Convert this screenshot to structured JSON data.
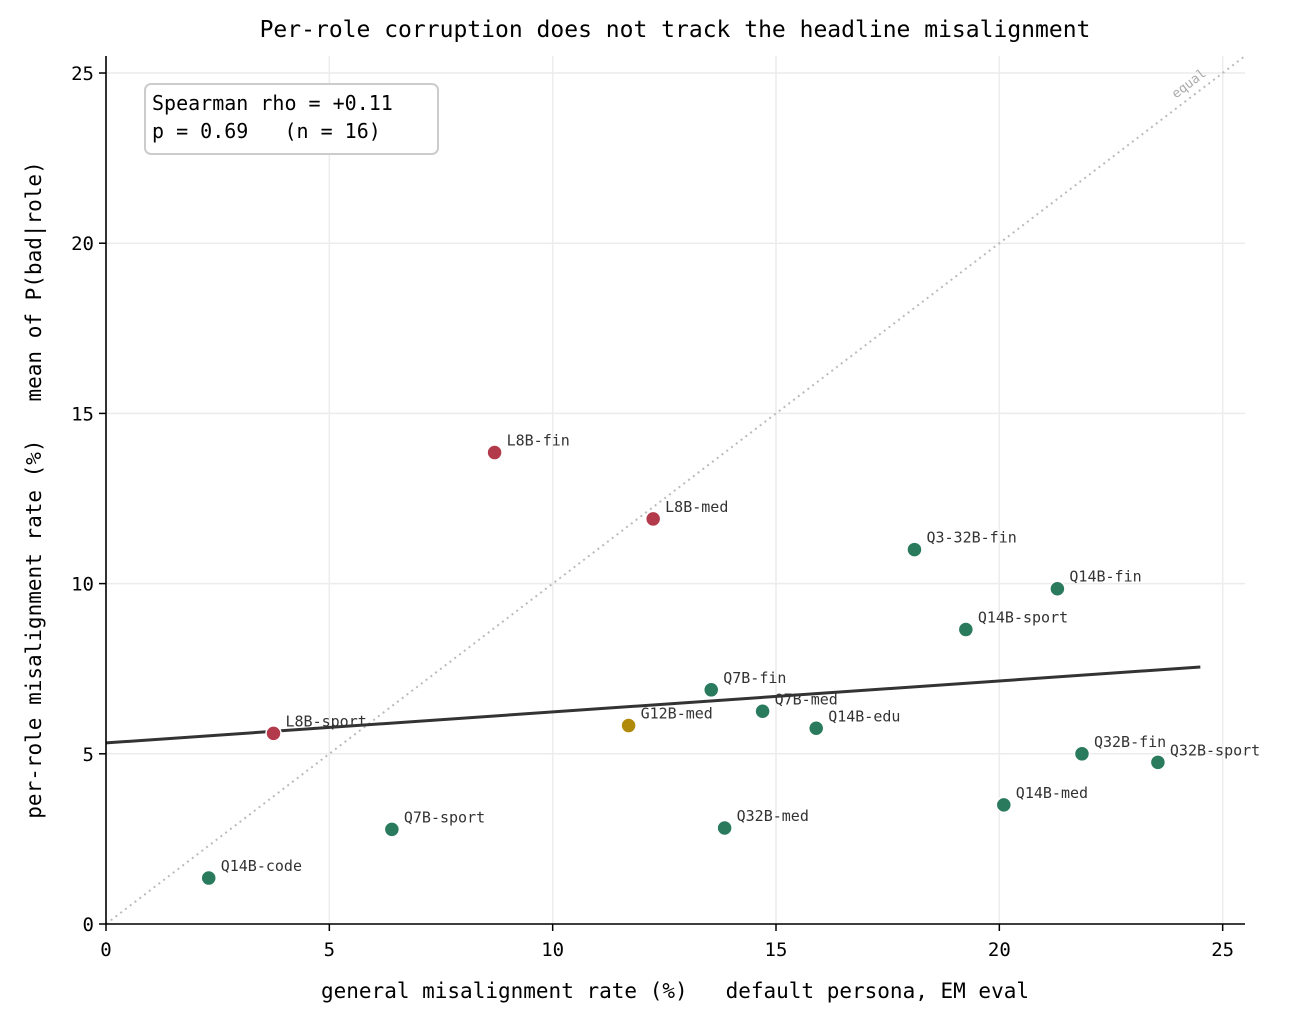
{
  "chart_data": {
    "type": "scatter",
    "title": "Per-role corruption does not track the headline misalignment",
    "xlabel": "general misalignment rate (%)   default persona, EM eval",
    "ylabel": "per-role misalignment rate (%)   mean of P(bad|role)",
    "xlim": [
      0,
      25.5
    ],
    "ylim": [
      0,
      25.5
    ],
    "xticks": [
      0,
      5,
      10,
      15,
      20,
      25
    ],
    "yticks": [
      0,
      5,
      10,
      15,
      20,
      25
    ],
    "grid": true,
    "stats": {
      "line1": "Spearman rho = +0.11",
      "line2": "p = 0.69   (n = 16)"
    },
    "reference_line": {
      "label": "equal",
      "from": [
        0,
        0
      ],
      "to": [
        25.5,
        25.5
      ],
      "color": "#bbbbbb"
    },
    "fit_line": {
      "from": [
        0,
        5.32
      ],
      "to": [
        24.5,
        7.55
      ],
      "color": "#333333"
    },
    "colors": {
      "green": "#2a7a5e",
      "red": "#b33a4a",
      "gold": "#b08a0a"
    },
    "points": [
      {
        "label": "L8B-fin",
        "x": 8.7,
        "y": 13.85,
        "color": "red"
      },
      {
        "label": "L8B-med",
        "x": 12.25,
        "y": 11.9,
        "color": "red"
      },
      {
        "label": "L8B-sport",
        "x": 3.75,
        "y": 5.6,
        "color": "red"
      },
      {
        "label": "Q3-32B-fin",
        "x": 18.1,
        "y": 11.0,
        "color": "green"
      },
      {
        "label": "Q14B-fin",
        "x": 21.3,
        "y": 9.85,
        "color": "green"
      },
      {
        "label": "Q14B-sport",
        "x": 19.25,
        "y": 8.65,
        "color": "green"
      },
      {
        "label": "Q7B-fin",
        "x": 13.55,
        "y": 6.88,
        "color": "green"
      },
      {
        "label": "Q7B-med",
        "x": 14.7,
        "y": 6.25,
        "color": "green"
      },
      {
        "label": "G12B-med",
        "x": 11.7,
        "y": 5.83,
        "color": "gold"
      },
      {
        "label": "Q14B-edu",
        "x": 15.9,
        "y": 5.75,
        "color": "green"
      },
      {
        "label": "Q32B-fin",
        "x": 21.85,
        "y": 5.0,
        "color": "green"
      },
      {
        "label": "Q32B-sport",
        "x": 23.55,
        "y": 4.75,
        "color": "green"
      },
      {
        "label": "Q14B-med",
        "x": 20.1,
        "y": 3.5,
        "color": "green"
      },
      {
        "label": "Q7B-sport",
        "x": 6.4,
        "y": 2.78,
        "color": "green"
      },
      {
        "label": "Q32B-med",
        "x": 13.85,
        "y": 2.82,
        "color": "green"
      },
      {
        "label": "Q14B-code",
        "x": 2.3,
        "y": 1.35,
        "color": "green"
      }
    ]
  }
}
